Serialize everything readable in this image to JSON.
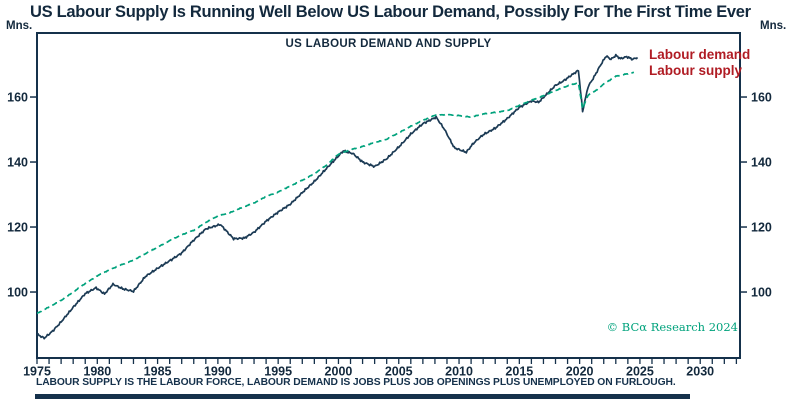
{
  "header": {
    "title": "US Labour Supply Is Running Well Below US Labour Demand, Possibly For The First Time Ever"
  },
  "axes": {
    "y_unit": "Mns."
  },
  "chart_data": {
    "type": "line",
    "title": "US LABOUR DEMAND AND SUPPLY",
    "ylabel": "Mns.",
    "ylim": [
      79.7,
      179.7
    ],
    "xlim": [
      1975,
      2033.3
    ],
    "yticks": [
      100,
      120,
      140,
      160
    ],
    "xticks_labeled": [
      1975,
      1980,
      1985,
      1990,
      1995,
      2000,
      2005,
      2010,
      2015,
      2020,
      2025,
      2030
    ],
    "xticks_minor_step": 1,
    "grid": false,
    "legend_position": "top-right",
    "series": [
      {
        "name": "Labour demand",
        "style": "solid",
        "color": "#1b3a54",
        "points": [
          [
            1975,
            87
          ],
          [
            1975.6,
            85.8
          ],
          [
            1976.3,
            88
          ],
          [
            1977,
            90.8
          ],
          [
            1978,
            95.3
          ],
          [
            1979,
            99.5
          ],
          [
            1979.9,
            101.3
          ],
          [
            1980.6,
            99.4
          ],
          [
            1981.3,
            102.4
          ],
          [
            1982.1,
            101
          ],
          [
            1983,
            100.2
          ],
          [
            1984,
            104.8
          ],
          [
            1985,
            107.3
          ],
          [
            1986,
            109.6
          ],
          [
            1987,
            112
          ],
          [
            1988,
            116
          ],
          [
            1989,
            119.4
          ],
          [
            1990.2,
            120.8
          ],
          [
            1991.3,
            116.4
          ],
          [
            1992.2,
            116.6
          ],
          [
            1993,
            118.4
          ],
          [
            1994,
            121.8
          ],
          [
            1995,
            124.6
          ],
          [
            1996,
            127
          ],
          [
            1997,
            130.6
          ],
          [
            1998,
            134
          ],
          [
            1999,
            138
          ],
          [
            2000.4,
            143.4
          ],
          [
            2001.2,
            142.6
          ],
          [
            2002,
            140
          ],
          [
            2003,
            138.6
          ],
          [
            2004,
            141
          ],
          [
            2005,
            144.6
          ],
          [
            2006,
            148.6
          ],
          [
            2007,
            151.8
          ],
          [
            2008.1,
            153.8
          ],
          [
            2008.8,
            150
          ],
          [
            2009.6,
            144.4
          ],
          [
            2010.6,
            143
          ],
          [
            2011.2,
            145.8
          ],
          [
            2012,
            148.4
          ],
          [
            2013,
            150.4
          ],
          [
            2014,
            153.4
          ],
          [
            2015,
            156.8
          ],
          [
            2016,
            158.8
          ],
          [
            2016.6,
            158.4
          ],
          [
            2017.2,
            160.6
          ],
          [
            2018,
            163.6
          ],
          [
            2018.6,
            164.8
          ],
          [
            2019.2,
            166.4
          ],
          [
            2019.9,
            168.2
          ],
          [
            2020.25,
            155.6
          ],
          [
            2020.7,
            163.2
          ],
          [
            2021.2,
            166.2
          ],
          [
            2021.7,
            169.6
          ],
          [
            2022.2,
            172.6
          ],
          [
            2022.6,
            171.6
          ],
          [
            2023,
            172.8
          ],
          [
            2023.4,
            171.8
          ],
          [
            2023.9,
            172.4
          ],
          [
            2024.4,
            171.6
          ],
          [
            2024.8,
            172.2
          ]
        ]
      },
      {
        "name": "Labour supply",
        "style": "dashed",
        "color": "#00a27c",
        "points": [
          [
            1975,
            93.4
          ],
          [
            1976,
            95.4
          ],
          [
            1977,
            97.4
          ],
          [
            1978,
            100
          ],
          [
            1979,
            102.6
          ],
          [
            1980,
            105
          ],
          [
            1981,
            106.8
          ],
          [
            1982,
            108.4
          ],
          [
            1983,
            109.8
          ],
          [
            1984,
            111.8
          ],
          [
            1985,
            113.8
          ],
          [
            1986,
            115.8
          ],
          [
            1987,
            117.6
          ],
          [
            1988,
            119
          ],
          [
            1989,
            121.4
          ],
          [
            1990,
            123.4
          ],
          [
            1991,
            124.4
          ],
          [
            1992,
            126
          ],
          [
            1993,
            127.4
          ],
          [
            1994,
            129.4
          ],
          [
            1995,
            130.8
          ],
          [
            1996,
            132.6
          ],
          [
            1997,
            134.4
          ],
          [
            1998,
            136.4
          ],
          [
            1999,
            139
          ],
          [
            2000,
            142.4
          ],
          [
            2001,
            143.8
          ],
          [
            2002,
            144.8
          ],
          [
            2003,
            146
          ],
          [
            2004,
            147
          ],
          [
            2005,
            149
          ],
          [
            2006,
            151
          ],
          [
            2007,
            152.8
          ],
          [
            2008,
            154.4
          ],
          [
            2009,
            154.6
          ],
          [
            2010,
            154.3
          ],
          [
            2011,
            153.8
          ],
          [
            2012,
            154.8
          ],
          [
            2013,
            155.3
          ],
          [
            2014,
            155.8
          ],
          [
            2015,
            157.4
          ],
          [
            2016,
            159
          ],
          [
            2017,
            160.4
          ],
          [
            2018,
            162
          ],
          [
            2019,
            163.4
          ],
          [
            2019.9,
            164.4
          ],
          [
            2020.25,
            156.4
          ],
          [
            2020.7,
            160.6
          ],
          [
            2021.2,
            161.6
          ],
          [
            2022,
            164
          ],
          [
            2023,
            166.4
          ],
          [
            2024.5,
            167.6
          ]
        ]
      }
    ]
  },
  "footer": {
    "note": "LABOUR SUPPLY IS THE LABOUR FORCE, LABOUR DEMAND IS JOBS PLUS JOB OPENINGS PLUS UNEMPLOYED ON FURLOUGH."
  },
  "copyright": {
    "text": "© BCα Research 2024"
  },
  "colors": {
    "navy": "#15314b",
    "demand_line": "#1b3a54",
    "supply_line": "#00a27c",
    "legend_red": "#b01c24",
    "copyright_teal": "#00a27c"
  }
}
